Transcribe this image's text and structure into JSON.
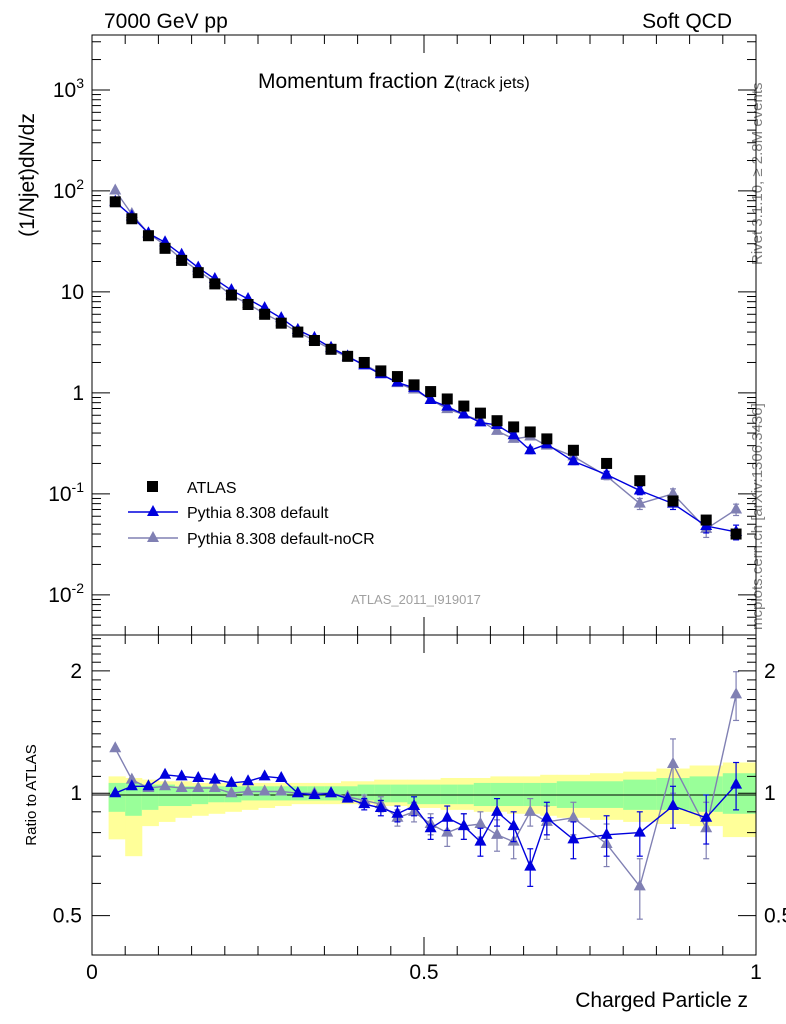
{
  "header": {
    "left": "7000 GeV pp",
    "right": "Soft QCD"
  },
  "side_text": {
    "top": "Rivet 3.1.10, ≥ 2.8M events",
    "bottom": "mcplots.cern.ch [arXiv:1306.3436]"
  },
  "colors": {
    "atlas": "#000000",
    "default": "#0000dd",
    "nocr": "#8080b3",
    "band_outer": "#ffff99",
    "band_inner": "#99ff99"
  },
  "chart_data": [
    {
      "type": "scatter",
      "panel": "main",
      "title": "Momentum fraction",
      "title_suffix": "z",
      "title_subscript": "(track jets)",
      "ylabel": "(1/Njet)dN/dz",
      "xlabel": "",
      "yscale": "log",
      "xlim": [
        0,
        1
      ],
      "ylim": [
        0.004,
        3500
      ],
      "yticks": [
        {
          "value": 0.01,
          "mantissa": "10",
          "exp": "-2"
        },
        {
          "value": 0.1,
          "mantissa": "10",
          "exp": "-1"
        },
        {
          "value": 1,
          "mantissa": "1",
          "exp": ""
        },
        {
          "value": 10,
          "mantissa": "10",
          "exp": ""
        },
        {
          "value": 100,
          "mantissa": "10",
          "exp": "2"
        },
        {
          "value": 1000,
          "mantissa": "10",
          "exp": "3"
        }
      ],
      "analysis_label": "ATLAS_2011_I919017",
      "legend": [
        "ATLAS",
        "Pythia 8.308 default",
        "Pythia 8.308 default-noCR"
      ],
      "x": [
        0.035,
        0.06,
        0.085,
        0.11,
        0.135,
        0.16,
        0.185,
        0.21,
        0.235,
        0.26,
        0.285,
        0.31,
        0.335,
        0.36,
        0.385,
        0.41,
        0.435,
        0.46,
        0.485,
        0.51,
        0.535,
        0.56,
        0.585,
        0.61,
        0.635,
        0.66,
        0.685,
        0.725,
        0.775,
        0.825,
        0.875,
        0.925,
        0.97
      ],
      "series": [
        {
          "name": "ATLAS",
          "values": [
            78,
            53,
            36,
            27,
            20.5,
            15.5,
            12,
            9.3,
            7.5,
            6.0,
            4.9,
            4.0,
            3.3,
            2.7,
            2.3,
            2.0,
            1.65,
            1.45,
            1.2,
            1.03,
            0.87,
            0.74,
            0.63,
            0.53,
            0.46,
            0.41,
            0.35,
            0.27,
            0.2,
            0.135,
            0.085,
            0.055,
            0.04
          ],
          "errors": [
            0,
            0,
            0,
            0,
            0,
            0,
            0,
            0,
            0,
            0,
            0,
            0,
            0,
            0,
            0,
            0,
            0,
            0,
            0,
            0,
            0,
            0,
            0,
            0,
            0,
            0,
            0,
            0,
            0,
            0,
            0.006,
            0.005,
            0.004
          ]
        },
        {
          "name": "Pythia 8.308 default",
          "values": [
            78,
            56,
            38,
            31,
            23.3,
            17.4,
            13.4,
            10.4,
            8.5,
            6.9,
            5.5,
            4.2,
            3.5,
            2.8,
            2.3,
            1.87,
            1.53,
            1.27,
            1.12,
            0.85,
            0.73,
            0.61,
            0.51,
            0.48,
            0.38,
            0.27,
            0.31,
            0.21,
            0.155,
            0.108,
            0.08,
            0.048,
            0.042
          ],
          "errors": [
            0,
            0,
            0,
            0,
            0,
            0,
            0,
            0,
            0,
            0,
            0,
            0,
            0,
            0,
            0,
            0,
            0,
            0,
            0,
            0,
            0,
            0,
            0,
            0.02,
            0.02,
            0.02,
            0.02,
            0.015,
            0.012,
            0.01,
            0.01,
            0.007,
            0.007
          ]
        },
        {
          "name": "Pythia 8.308 default-noCR",
          "values": [
            101,
            59,
            38,
            29,
            21.2,
            16.2,
            12.4,
            9.3,
            7.6,
            6.1,
            5.0,
            4.0,
            3.3,
            2.7,
            2.25,
            1.92,
            1.55,
            1.25,
            1.08,
            0.86,
            0.69,
            0.61,
            0.53,
            0.42,
            0.35,
            0.37,
            0.3,
            0.235,
            0.15,
            0.08,
            0.1,
            0.045,
            0.07
          ],
          "errors": [
            0,
            0,
            0,
            0,
            0,
            0,
            0,
            0,
            0,
            0,
            0,
            0,
            0,
            0,
            0,
            0,
            0,
            0,
            0,
            0,
            0,
            0,
            0,
            0.02,
            0.02,
            0.02,
            0.02,
            0.015,
            0.012,
            0.01,
            0.012,
            0.008,
            0.009
          ]
        }
      ]
    },
    {
      "type": "scatter",
      "panel": "ratio",
      "ylabel": "Ratio to ATLAS",
      "xlabel": "Charged Particle z",
      "yscale": "log",
      "xlim": [
        0,
        1
      ],
      "ylim": [
        0.4,
        2.45
      ],
      "yticks": [
        0.5,
        1,
        2
      ],
      "ytick_labels": [
        "0.5",
        "1",
        "2"
      ],
      "xticks": [
        0,
        0.5,
        1
      ],
      "xtick_labels": [
        "0",
        "0.5",
        "1"
      ],
      "band_edges": [
        0.025,
        0.05,
        0.075,
        0.1,
        0.125,
        0.15,
        0.175,
        0.2,
        0.225,
        0.25,
        0.275,
        0.3,
        0.325,
        0.35,
        0.375,
        0.4,
        0.425,
        0.45,
        0.475,
        0.5,
        0.525,
        0.55,
        0.575,
        0.6,
        0.625,
        0.65,
        0.675,
        0.7,
        0.75,
        0.8,
        0.85,
        0.9,
        0.95,
        1.0
      ],
      "band_outer_lo": [
        0.77,
        0.7,
        0.83,
        0.85,
        0.87,
        0.88,
        0.89,
        0.9,
        0.91,
        0.92,
        0.93,
        0.94,
        0.94,
        0.94,
        0.94,
        0.94,
        0.93,
        0.93,
        0.92,
        0.92,
        0.91,
        0.91,
        0.9,
        0.9,
        0.89,
        0.89,
        0.88,
        0.87,
        0.86,
        0.85,
        0.84,
        0.83,
        0.78
      ],
      "band_outer_hi": [
        1.1,
        1.09,
        1.08,
        1.07,
        1.07,
        1.06,
        1.06,
        1.06,
        1.06,
        1.06,
        1.06,
        1.06,
        1.06,
        1.06,
        1.07,
        1.07,
        1.08,
        1.08,
        1.08,
        1.08,
        1.09,
        1.09,
        1.09,
        1.1,
        1.1,
        1.1,
        1.11,
        1.11,
        1.12,
        1.13,
        1.15,
        1.17,
        1.19
      ],
      "band_inner_lo": [
        0.9,
        0.88,
        0.91,
        0.93,
        0.93,
        0.94,
        0.95,
        0.95,
        0.96,
        0.96,
        0.96,
        0.96,
        0.96,
        0.96,
        0.96,
        0.96,
        0.95,
        0.95,
        0.94,
        0.94,
        0.94,
        0.94,
        0.93,
        0.93,
        0.93,
        0.93,
        0.93,
        0.92,
        0.92,
        0.91,
        0.91,
        0.9,
        0.89
      ],
      "band_inner_hi": [
        1.06,
        1.06,
        1.05,
        1.05,
        1.04,
        1.04,
        1.04,
        1.04,
        1.04,
        1.04,
        1.04,
        1.04,
        1.04,
        1.04,
        1.04,
        1.05,
        1.05,
        1.05,
        1.05,
        1.05,
        1.05,
        1.05,
        1.06,
        1.06,
        1.06,
        1.06,
        1.06,
        1.07,
        1.07,
        1.08,
        1.09,
        1.1,
        1.12
      ],
      "x": [
        0.035,
        0.06,
        0.085,
        0.11,
        0.135,
        0.16,
        0.185,
        0.21,
        0.235,
        0.26,
        0.285,
        0.31,
        0.335,
        0.36,
        0.385,
        0.41,
        0.435,
        0.46,
        0.485,
        0.51,
        0.535,
        0.56,
        0.585,
        0.61,
        0.635,
        0.66,
        0.685,
        0.725,
        0.775,
        0.825,
        0.875,
        0.925,
        0.97
      ],
      "series": [
        {
          "name": "Pythia 8.308 default",
          "values": [
            1.0,
            1.04,
            1.04,
            1.11,
            1.1,
            1.09,
            1.08,
            1.06,
            1.07,
            1.1,
            1.09,
            1.0,
            0.99,
            1.0,
            0.97,
            0.94,
            0.92,
            0.89,
            0.93,
            0.82,
            0.87,
            0.83,
            0.76,
            0.9,
            0.83,
            0.66,
            0.87,
            0.77,
            0.79,
            0.8,
            0.93,
            0.87,
            1.05
          ],
          "errors": [
            0,
            0,
            0,
            0,
            0,
            0,
            0,
            0,
            0,
            0,
            0,
            0,
            0,
            0,
            0,
            0.03,
            0.04,
            0.04,
            0.05,
            0.05,
            0.06,
            0.06,
            0.06,
            0.07,
            0.07,
            0.07,
            0.08,
            0.08,
            0.09,
            0.1,
            0.11,
            0.12,
            0.14
          ]
        },
        {
          "name": "Pythia 8.308 default-noCR",
          "values": [
            1.29,
            1.08,
            1.03,
            1.04,
            1.03,
            1.03,
            1.03,
            1.0,
            1.01,
            1.01,
            1.01,
            1.0,
            1.0,
            1.0,
            0.98,
            0.96,
            0.94,
            0.87,
            0.9,
            0.84,
            0.8,
            0.83,
            0.84,
            0.79,
            0.76,
            0.9,
            0.85,
            0.87,
            0.75,
            0.59,
            1.18,
            0.82,
            1.75
          ],
          "errors": [
            0,
            0,
            0,
            0,
            0,
            0,
            0,
            0,
            0,
            0,
            0,
            0,
            0,
            0,
            0,
            0.03,
            0.04,
            0.04,
            0.05,
            0.05,
            0.06,
            0.06,
            0.06,
            0.07,
            0.07,
            0.07,
            0.08,
            0.08,
            0.09,
            0.1,
            0.18,
            0.13,
            0.24
          ]
        }
      ]
    }
  ]
}
